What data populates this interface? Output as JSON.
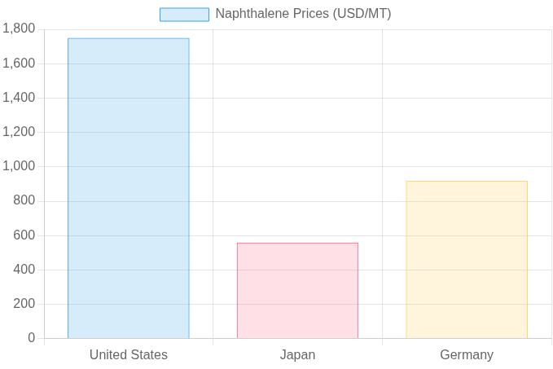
{
  "chart_data": {
    "type": "bar",
    "categories": [
      "United States",
      "Japan",
      "Germany"
    ],
    "series": [
      {
        "name": "Naphthalene Prices (USD/MT)",
        "colors": [
          "#36a2eb",
          "#ff6384",
          "#ffce56"
        ],
        "values": [
          1750,
          560,
          920
        ]
      }
    ],
    "ylim": [
      0,
      1800
    ],
    "yticks": [
      0,
      200,
      400,
      600,
      800,
      {
        "value": 1000,
        "label": "1,000"
      },
      {
        "value": 1200,
        "label": "1,200"
      },
      {
        "value": 1400,
        "label": "1,400"
      },
      {
        "value": 1600,
        "label": "1,600"
      },
      {
        "value": 1800,
        "label": "1,800"
      }
    ],
    "grid": true,
    "legend": "top"
  }
}
